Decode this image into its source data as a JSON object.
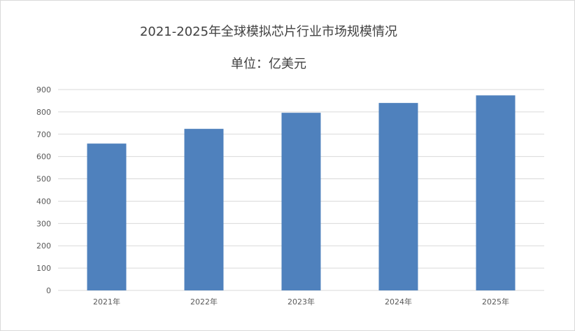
{
  "chart_data": {
    "type": "bar",
    "title": "2021-2025年全球模拟芯片行业市场规模情况",
    "subtitle": "单位：亿美元",
    "categories": [
      "2021年",
      "2022年",
      "2023年",
      "2024年",
      "2025年"
    ],
    "values": [
      658,
      724,
      796,
      840,
      874
    ],
    "ylim": [
      0,
      900
    ],
    "yticks": [
      0,
      100,
      200,
      300,
      400,
      500,
      600,
      700,
      800,
      900
    ],
    "grid": true,
    "legend": "none",
    "bar_color": "#4f81bd",
    "grid_color": "#d9d9d9"
  }
}
